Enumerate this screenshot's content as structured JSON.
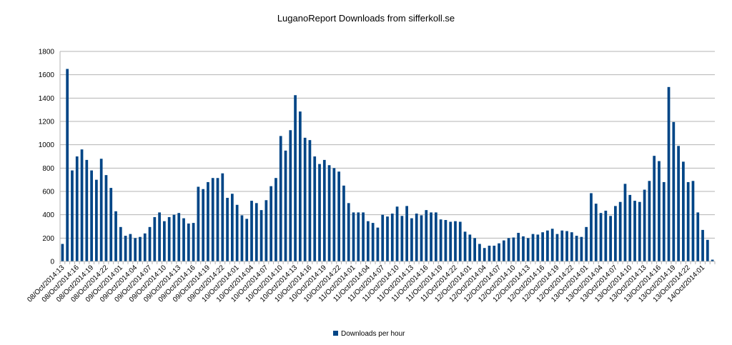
{
  "chart_data": {
    "type": "bar",
    "title": "LuganoReport Downloads from sifferkoll.se",
    "xlabel": "",
    "ylabel": "",
    "ylim": [
      0,
      1800
    ],
    "yticks": [
      0,
      200,
      400,
      600,
      800,
      1000,
      1200,
      1400,
      1600,
      1800
    ],
    "grid": true,
    "legend_position": "bottom",
    "color": "#004586",
    "series": [
      {
        "name": "Downloads per hour",
        "values": [
          150,
          1650,
          780,
          900,
          960,
          870,
          780,
          700,
          880,
          740,
          630,
          430,
          295,
          220,
          235,
          200,
          210,
          240,
          295,
          380,
          420,
          345,
          380,
          400,
          415,
          370,
          325,
          330,
          640,
          620,
          680,
          715,
          715,
          755,
          545,
          580,
          485,
          395,
          365,
          520,
          500,
          440,
          525,
          645,
          715,
          1075,
          950,
          1125,
          1425,
          1285,
          1060,
          1040,
          900,
          835,
          870,
          825,
          800,
          770,
          650,
          500,
          420,
          420,
          420,
          345,
          330,
          290,
          400,
          385,
          410,
          470,
          390,
          475,
          370,
          410,
          395,
          440,
          420,
          420,
          360,
          355,
          340,
          345,
          340,
          255,
          230,
          200,
          150,
          115,
          135,
          135,
          155,
          180,
          200,
          205,
          245,
          215,
          200,
          235,
          230,
          250,
          265,
          280,
          235,
          265,
          260,
          250,
          220,
          210,
          295,
          585,
          495,
          415,
          435,
          390,
          475,
          510,
          665,
          570,
          520,
          510,
          615,
          690,
          905,
          860,
          680,
          1495,
          1195,
          990,
          855,
          680,
          690,
          420,
          270,
          185,
          15
        ]
      }
    ],
    "tick_labels": [
      "08/Oct/2014:13",
      "08/Oct/2014:16",
      "08/Oct/2014:19",
      "08/Oct/2014:22",
      "09/Oct/2014:01",
      "09/Oct/2014:04",
      "09/Oct/2014:07",
      "09/Oct/2014:10",
      "09/Oct/2014:13",
      "09/Oct/2014:16",
      "09/Oct/2014:19",
      "09/Oct/2014:22",
      "10/Oct/2014:01",
      "10/Oct/2014:04",
      "10/Oct/2014:07",
      "10/Oct/2014:10",
      "10/Oct/2014:13",
      "10/Oct/2014:16",
      "10/Oct/2014:19",
      "10/Oct/2014:22",
      "11/Oct/2014:01",
      "11/Oct/2014:04",
      "11/Oct/2014:07",
      "11/Oct/2014:10",
      "11/Oct/2014:13",
      "11/Oct/2014:16",
      "11/Oct/2014:19",
      "11/Oct/2014:22",
      "12/Oct/2014:01",
      "12/Oct/2014:04",
      "12/Oct/2014:07",
      "12/Oct/2014:10",
      "12/Oct/2014:13",
      "12/Oct/2014:16",
      "12/Oct/2014:19",
      "12/Oct/2014:22",
      "13/Oct/2014:01",
      "13/Oct/2014:04",
      "13/Oct/2014:07",
      "13/Oct/2014:10",
      "13/Oct/2014:13",
      "13/Oct/2014:16",
      "13/Oct/2014:19",
      "13/Oct/2014:22",
      "14/Oct/2014:01"
    ],
    "tick_every": 3
  }
}
